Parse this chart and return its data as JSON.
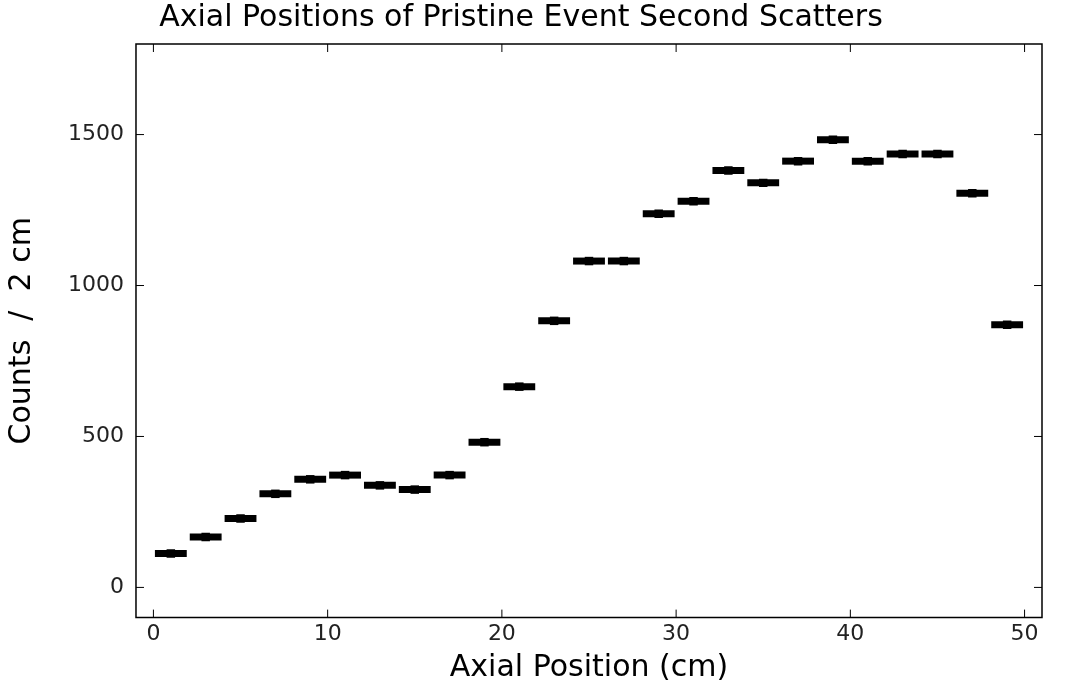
{
  "chart_data": {
    "type": "scatter",
    "title": "Axial Positions of Pristine Event Second Scatters",
    "xlabel": "Axial Position (cm)",
    "ylabel": "Counts  /  2 cm",
    "x": [
      1,
      3,
      5,
      7,
      9,
      11,
      13,
      15,
      17,
      19,
      21,
      23,
      25,
      27,
      29,
      31,
      33,
      35,
      37,
      39,
      41,
      43,
      45,
      47,
      49
    ],
    "values": [
      112,
      167,
      228,
      310,
      358,
      372,
      338,
      324,
      372,
      481,
      665,
      883,
      1081,
      1081,
      1238,
      1279,
      1381,
      1340,
      1412,
      1483,
      1412,
      1436,
      1436,
      1306,
      870
    ],
    "xerrors": [
      1,
      1,
      1,
      1,
      1,
      1,
      1,
      1,
      1,
      1,
      1,
      1,
      1,
      1,
      1,
      1,
      1,
      1,
      1,
      1,
      1,
      1,
      1,
      1,
      1
    ],
    "color": "#000000",
    "marker": "square",
    "xlim": [
      -1,
      51
    ],
    "ylim": [
      -100,
      1800
    ],
    "xticks": [
      0,
      10,
      20,
      30,
      40,
      50
    ],
    "yticks": [
      0,
      500,
      1000,
      1500
    ],
    "grid": false,
    "legend": false
  }
}
